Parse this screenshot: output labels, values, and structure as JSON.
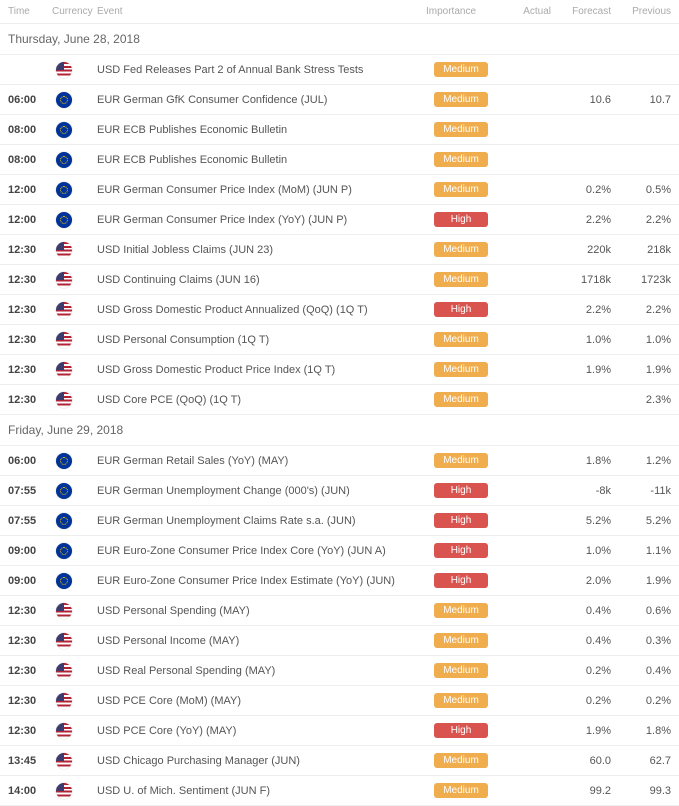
{
  "headers": {
    "time": "Time",
    "currency": "Currency",
    "event": "Event",
    "importance": "Importance",
    "actual": "Actual",
    "forecast": "Forecast",
    "previous": "Previous"
  },
  "importance_labels": {
    "medium": "Medium",
    "high": "High"
  },
  "colors": {
    "medium": "#f0ad4e",
    "high": "#d9534f",
    "border": "#eeeeee",
    "text": "#666666"
  },
  "days": [
    {
      "date": "Thursday, June 28, 2018",
      "rows": [
        {
          "time": "",
          "flag": "us",
          "event": "USD Fed Releases Part 2 of Annual Bank Stress Tests",
          "imp": "medium",
          "actual": "",
          "forecast": "",
          "previous": ""
        },
        {
          "time": "06:00",
          "flag": "eu",
          "event": "EUR German GfK Consumer Confidence (JUL)",
          "imp": "medium",
          "actual": "",
          "forecast": "10.6",
          "previous": "10.7"
        },
        {
          "time": "08:00",
          "flag": "eu",
          "event": "EUR ECB Publishes Economic Bulletin",
          "imp": "medium",
          "actual": "",
          "forecast": "",
          "previous": ""
        },
        {
          "time": "08:00",
          "flag": "eu",
          "event": "EUR ECB Publishes Economic Bulletin",
          "imp": "medium",
          "actual": "",
          "forecast": "",
          "previous": ""
        },
        {
          "time": "12:00",
          "flag": "eu",
          "event": "EUR German Consumer Price Index (MoM) (JUN P)",
          "imp": "medium",
          "actual": "",
          "forecast": "0.2%",
          "previous": "0.5%"
        },
        {
          "time": "12:00",
          "flag": "eu",
          "event": "EUR German Consumer Price Index (YoY) (JUN P)",
          "imp": "high",
          "actual": "",
          "forecast": "2.2%",
          "previous": "2.2%"
        },
        {
          "time": "12:30",
          "flag": "us",
          "event": "USD Initial Jobless Claims (JUN 23)",
          "imp": "medium",
          "actual": "",
          "forecast": "220k",
          "previous": "218k"
        },
        {
          "time": "12:30",
          "flag": "us",
          "event": "USD Continuing Claims (JUN 16)",
          "imp": "medium",
          "actual": "",
          "forecast": "1718k",
          "previous": "1723k"
        },
        {
          "time": "12:30",
          "flag": "us",
          "event": "USD Gross Domestic Product Annualized (QoQ) (1Q T)",
          "imp": "high",
          "actual": "",
          "forecast": "2.2%",
          "previous": "2.2%"
        },
        {
          "time": "12:30",
          "flag": "us",
          "event": "USD Personal Consumption (1Q T)",
          "imp": "medium",
          "actual": "",
          "forecast": "1.0%",
          "previous": "1.0%"
        },
        {
          "time": "12:30",
          "flag": "us",
          "event": "USD Gross Domestic Product Price Index (1Q T)",
          "imp": "medium",
          "actual": "",
          "forecast": "1.9%",
          "previous": "1.9%"
        },
        {
          "time": "12:30",
          "flag": "us",
          "event": "USD Core PCE (QoQ) (1Q T)",
          "imp": "medium",
          "actual": "",
          "forecast": "",
          "previous": "2.3%"
        }
      ]
    },
    {
      "date": "Friday, June 29, 2018",
      "rows": [
        {
          "time": "06:00",
          "flag": "eu",
          "event": "EUR German Retail Sales (YoY) (MAY)",
          "imp": "medium",
          "actual": "",
          "forecast": "1.8%",
          "previous": "1.2%"
        },
        {
          "time": "07:55",
          "flag": "eu",
          "event": "EUR German Unemployment Change (000's) (JUN)",
          "imp": "high",
          "actual": "",
          "forecast": "-8k",
          "previous": "-11k"
        },
        {
          "time": "07:55",
          "flag": "eu",
          "event": "EUR German Unemployment Claims Rate s.a. (JUN)",
          "imp": "high",
          "actual": "",
          "forecast": "5.2%",
          "previous": "5.2%"
        },
        {
          "time": "09:00",
          "flag": "eu",
          "event": "EUR Euro-Zone Consumer Price Index Core (YoY) (JUN A)",
          "imp": "high",
          "actual": "",
          "forecast": "1.0%",
          "previous": "1.1%"
        },
        {
          "time": "09:00",
          "flag": "eu",
          "event": "EUR Euro-Zone Consumer Price Index Estimate (YoY) (JUN)",
          "imp": "high",
          "actual": "",
          "forecast": "2.0%",
          "previous": "1.9%"
        },
        {
          "time": "12:30",
          "flag": "us",
          "event": "USD Personal Spending (MAY)",
          "imp": "medium",
          "actual": "",
          "forecast": "0.4%",
          "previous": "0.6%"
        },
        {
          "time": "12:30",
          "flag": "us",
          "event": "USD Personal Income (MAY)",
          "imp": "medium",
          "actual": "",
          "forecast": "0.4%",
          "previous": "0.3%"
        },
        {
          "time": "12:30",
          "flag": "us",
          "event": "USD Real Personal Spending (MAY)",
          "imp": "medium",
          "actual": "",
          "forecast": "0.2%",
          "previous": "0.4%"
        },
        {
          "time": "12:30",
          "flag": "us",
          "event": "USD PCE Core (MoM) (MAY)",
          "imp": "medium",
          "actual": "",
          "forecast": "0.2%",
          "previous": "0.2%"
        },
        {
          "time": "12:30",
          "flag": "us",
          "event": "USD PCE Core (YoY) (MAY)",
          "imp": "high",
          "actual": "",
          "forecast": "1.9%",
          "previous": "1.8%"
        },
        {
          "time": "13:45",
          "flag": "us",
          "event": "USD Chicago Purchasing Manager (JUN)",
          "imp": "medium",
          "actual": "",
          "forecast": "60.0",
          "previous": "62.7"
        },
        {
          "time": "14:00",
          "flag": "us",
          "event": "USD U. of Mich. Sentiment (JUN F)",
          "imp": "medium",
          "actual": "",
          "forecast": "99.2",
          "previous": "99.3"
        }
      ]
    }
  ]
}
